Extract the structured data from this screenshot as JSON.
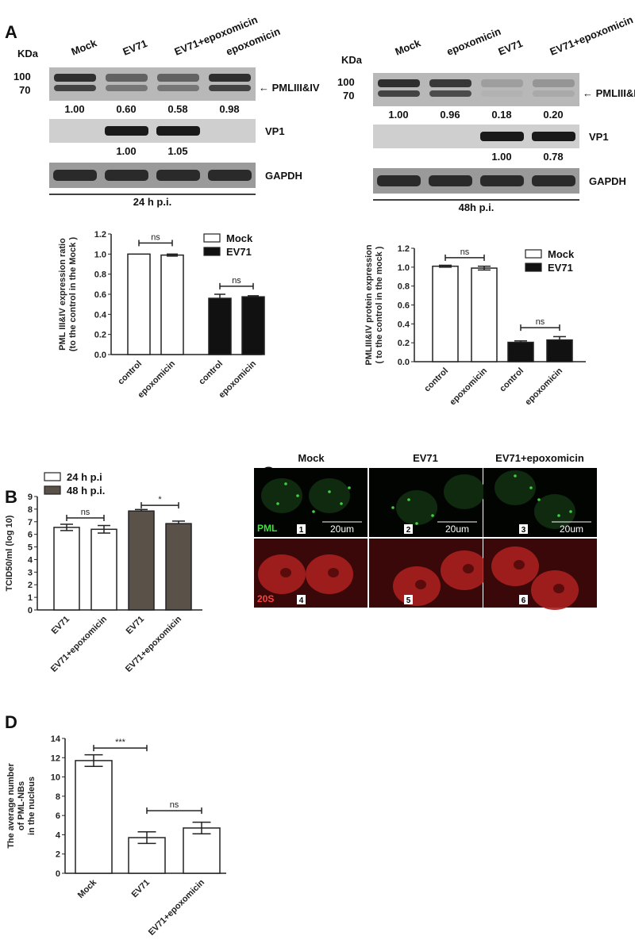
{
  "panel_labels": {
    "a": "A",
    "b": "B",
    "c": "C",
    "d": "D"
  },
  "blot_left": {
    "kda": "KDa",
    "lanes": [
      "Mock",
      "EV71",
      "EV71+epoxomicin",
      "epoxomicin"
    ],
    "markers": [
      "100",
      "70"
    ],
    "pml_label": "← PMLIII&IV",
    "pml_values": [
      "1.00",
      "0.60",
      "0.58",
      "0.98"
    ],
    "vp1_label": "VP1",
    "vp1_values": [
      "",
      "1.00",
      "1.05",
      ""
    ],
    "gapdh_label": "GAPDH",
    "time": "24 h p.i."
  },
  "blot_right": {
    "kda": "KDa",
    "lanes": [
      "Mock",
      "epoxomicin",
      "EV71",
      "EV71+epoxomicin"
    ],
    "markers": [
      "100",
      "70"
    ],
    "pml_label": "← PMLIII&IV",
    "pml_values": [
      "1.00",
      "0.96",
      "0.18",
      "0.20"
    ],
    "vp1_label": "VP1",
    "vp1_values": [
      "",
      "",
      "1.00",
      "0.78"
    ],
    "gapdh_label": "GAPDH",
    "time": "48h p.i."
  },
  "microscopy": {
    "columns": [
      "Mock",
      "EV71",
      "EV71+epoxomicin"
    ],
    "row_labels": [
      "PML",
      "20S"
    ],
    "panel_numbers": [
      "1",
      "2",
      "3",
      "4",
      "5",
      "6"
    ],
    "scale_bar": "20um",
    "colors": {
      "pml": "#3fd13f",
      "20s": "#e03030"
    }
  },
  "chart_data": [
    {
      "type": "bar",
      "id": "A-24h",
      "ylabel": [
        "PML III&IV expression ratio",
        "(to the control in the Mock )"
      ],
      "categories": [
        "control",
        "epoxomicin",
        "control",
        "epoxomicin"
      ],
      "values": [
        1.0,
        0.99,
        0.56,
        0.575
      ],
      "errors": [
        0,
        0.01,
        0.04,
        0.01
      ],
      "fills": [
        "#ffffff",
        "#ffffff",
        "#111111",
        "#111111"
      ],
      "ylim": [
        0,
        1.2
      ],
      "yticks": [
        "0.0",
        "0.2",
        "0.4",
        "0.6",
        "0.8",
        "1.0",
        "1.2"
      ],
      "legend": [
        {
          "name": "Mock",
          "color": "#ffffff"
        },
        {
          "name": "EV71",
          "color": "#111111"
        }
      ],
      "legend_position": "top-right",
      "annotations": [
        {
          "text": "ns",
          "from": 0,
          "to": 1,
          "y": 1.11
        },
        {
          "text": "ns",
          "from": 2,
          "to": 3,
          "y": 0.68
        }
      ]
    },
    {
      "type": "bar",
      "id": "A-48h",
      "ylabel": [
        "PMLIII&IV protein expression",
        "( to the control in the mock )"
      ],
      "categories": [
        "control",
        "epoxomicin",
        "control",
        "epoxomicin"
      ],
      "values": [
        1.01,
        0.99,
        0.205,
        0.23
      ],
      "errors": [
        0.01,
        0.02,
        0.015,
        0.035
      ],
      "fills": [
        "#ffffff",
        "#ffffff",
        "#111111",
        "#111111"
      ],
      "ylim": [
        0,
        1.2
      ],
      "yticks": [
        "0.0",
        "0.2",
        "0.4",
        "0.6",
        "0.8",
        "1.0",
        "1.2"
      ],
      "legend": [
        {
          "name": "Mock",
          "color": "#ffffff"
        },
        {
          "name": "EV71",
          "color": "#111111"
        }
      ],
      "legend_position": "top-right",
      "annotations": [
        {
          "text": "ns",
          "from": 0,
          "to": 1,
          "y": 1.1
        },
        {
          "text": "ns",
          "from": 2,
          "to": 3,
          "y": 0.36
        }
      ]
    },
    {
      "type": "bar",
      "id": "B",
      "ylabel": [
        "TCID50/ml (log 10)"
      ],
      "categories": [
        "EV71",
        "EV71+epoxomicin",
        "EV71",
        "EV71+epoxomicin"
      ],
      "values": [
        6.55,
        6.4,
        7.85,
        6.85
      ],
      "errors": [
        0.25,
        0.3,
        0.12,
        0.2
      ],
      "fills": [
        "#ffffff",
        "#ffffff",
        "#5a5148",
        "#5a5148"
      ],
      "ylim": [
        0,
        9
      ],
      "yticks": [
        "0",
        "1",
        "2",
        "3",
        "4",
        "5",
        "6",
        "7",
        "8",
        "9"
      ],
      "legend": [
        {
          "name": "24 h p.i",
          "color": "#ffffff"
        },
        {
          "name": "48 h p.i.",
          "color": "#5a5148"
        }
      ],
      "legend_position": "top-left",
      "annotations": [
        {
          "text": "ns",
          "from": 0,
          "to": 1,
          "y": 7.3
        },
        {
          "text": "*",
          "from": 2,
          "to": 3,
          "y": 8.3
        }
      ]
    },
    {
      "type": "bar",
      "id": "D",
      "ylabel": [
        "The average  number",
        "of PML-NBs",
        "in the nucleus"
      ],
      "categories": [
        "Mock",
        "EV71",
        "EV71+epoxomicin"
      ],
      "values": [
        11.7,
        3.7,
        4.7
      ],
      "errors": [
        0.6,
        0.6,
        0.6
      ],
      "fills": [
        "#ffffff",
        "#ffffff",
        "#ffffff"
      ],
      "ylim": [
        0,
        14
      ],
      "yticks": [
        "0",
        "2",
        "4",
        "6",
        "8",
        "10",
        "12",
        "14"
      ],
      "annotations": [
        {
          "text": "***",
          "from": 0,
          "to": 1,
          "y": 13
        },
        {
          "text": "ns",
          "from": 1,
          "to": 2,
          "y": 6.5
        }
      ]
    }
  ]
}
